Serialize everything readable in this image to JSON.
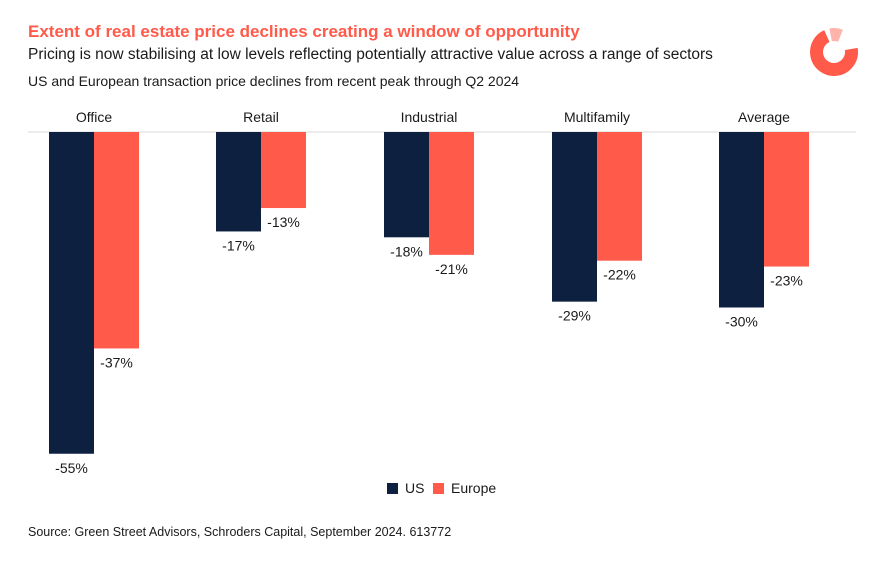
{
  "header": {
    "title": "Extent of real estate price declines creating a window of opportunity",
    "subtitle": "Pricing is now stabilising at low levels reflecting potentially attractive value across a range of sectors",
    "description": "US and European transaction price declines from recent peak through Q2 2024"
  },
  "colors": {
    "accent": "#ff5a4a",
    "us": "#0d2040",
    "europe": "#ff5a4a",
    "axis": "#d8d8d8"
  },
  "chart_data": {
    "type": "bar",
    "categories": [
      "Office",
      "Retail",
      "Industrial",
      "Multifamily",
      "Average"
    ],
    "series": [
      {
        "name": "US",
        "values": [
          -55,
          -17,
          -18,
          -29,
          -30
        ],
        "labels": [
          "-55%",
          "-17%",
          "-18%",
          "-29%",
          "-30%"
        ]
      },
      {
        "name": "Europe",
        "values": [
          -37,
          -13,
          -21,
          -22,
          -23
        ],
        "labels": [
          "-37%",
          "-13%",
          "-21%",
          "-22%",
          "-23%"
        ]
      }
    ],
    "ylim": [
      -55,
      0
    ],
    "grid": false,
    "legend_position": "bottom"
  },
  "legend": [
    {
      "label": "US"
    },
    {
      "label": "Europe"
    }
  ],
  "footer": {
    "source": "Source: Green Street Advisors, Schroders Capital, September 2024. 613772"
  }
}
